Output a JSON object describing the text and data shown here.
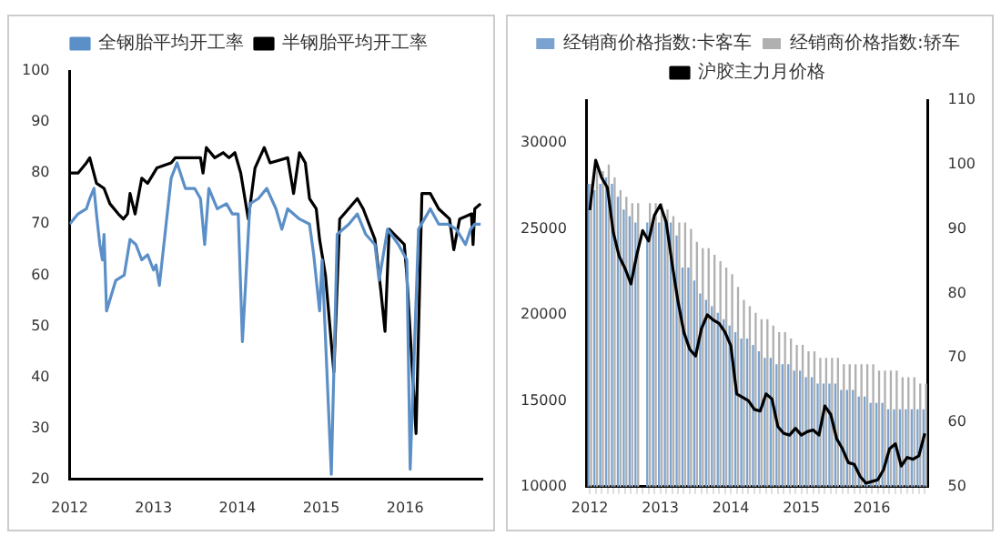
{
  "chart_data": [
    {
      "type": "line",
      "xlim": [
        2012,
        2016.92
      ],
      "xticks": [
        2012,
        2013,
        2014,
        2015,
        2016
      ],
      "ylim": [
        20,
        100
      ],
      "yticks": [
        20,
        30,
        40,
        50,
        60,
        70,
        80,
        90,
        100
      ],
      "grid": false,
      "legend": "top",
      "series": [
        {
          "name": "全钢胎平均开工率",
          "color": "#5b8fc7",
          "x": [
            2012.0,
            2012.1,
            2012.2,
            2012.24,
            2012.29,
            2012.32,
            2012.36,
            2012.39,
            2012.41,
            2012.44,
            2012.55,
            2012.65,
            2012.72,
            2012.79,
            2012.86,
            2012.93,
            2013.0,
            2013.03,
            2013.07,
            2013.21,
            2013.28,
            2013.38,
            2013.49,
            2013.56,
            2013.61,
            2013.66,
            2013.76,
            2013.87,
            2013.94,
            2014.01,
            2014.06,
            2014.15,
            2014.25,
            2014.35,
            2014.46,
            2014.53,
            2014.6,
            2014.74,
            2014.86,
            2014.91,
            2014.98,
            2015.01,
            2015.12,
            2015.19,
            2015.33,
            2015.43,
            2015.53,
            2015.64,
            2015.69,
            2015.79,
            2015.92,
            2016.02,
            2016.06,
            2016.16,
            2016.3,
            2016.4,
            2016.51,
            2016.61,
            2016.72,
            2016.78,
            2016.83,
            2016.9
          ],
          "values": [
            70,
            72,
            73,
            75,
            77,
            72,
            66,
            63,
            68,
            53,
            59,
            60,
            67,
            66,
            63,
            64,
            61,
            62,
            58,
            79,
            82,
            77,
            77,
            75,
            66,
            77,
            73,
            74,
            72,
            72,
            47,
            74,
            75,
            77,
            73,
            69,
            73,
            71,
            70,
            64,
            53,
            63,
            21,
            68,
            70,
            72,
            68,
            66,
            59,
            69,
            66,
            63,
            22,
            69,
            73,
            70,
            70,
            69,
            66,
            69,
            70,
            70
          ]
        },
        {
          "name": "半钢胎平均开工率",
          "color": "#000000",
          "x": [
            2012.0,
            2012.1,
            2012.2,
            2012.24,
            2012.32,
            2012.41,
            2012.48,
            2012.58,
            2012.64,
            2012.69,
            2012.72,
            2012.78,
            2012.86,
            2012.93,
            2013.04,
            2013.21,
            2013.26,
            2013.56,
            2013.59,
            2013.63,
            2013.73,
            2013.83,
            2013.9,
            2013.97,
            2014.04,
            2014.13,
            2014.21,
            2014.32,
            2014.39,
            2014.6,
            2014.67,
            2014.74,
            2014.81,
            2014.86,
            2014.94,
            2014.98,
            2015.05,
            2015.15,
            2015.22,
            2015.43,
            2015.5,
            2015.64,
            2015.71,
            2015.76,
            2015.81,
            2015.99,
            2016.02,
            2016.13,
            2016.2,
            2016.3,
            2016.4,
            2016.53,
            2016.58,
            2016.65,
            2016.79,
            2016.81,
            2016.83,
            2016.9
          ],
          "values": [
            80,
            80,
            82,
            83,
            78,
            77,
            74,
            72,
            71,
            72,
            76,
            72,
            79,
            78,
            81,
            82,
            83,
            83,
            80,
            85,
            83,
            84,
            83,
            84,
            80,
            71,
            81,
            85,
            82,
            83,
            76,
            84,
            82,
            75,
            73,
            67,
            60,
            41,
            71,
            75,
            73,
            67,
            57,
            49,
            69,
            66,
            60,
            29,
            76,
            76,
            73,
            71,
            65,
            71,
            72,
            66,
            73,
            74
          ]
        }
      ]
    },
    {
      "type": "bar",
      "categories": [
        "2012",
        null,
        null,
        null,
        null,
        null,
        null,
        null,
        null,
        null,
        null,
        null,
        "2013",
        null,
        null,
        null,
        null,
        null,
        null,
        null,
        null,
        null,
        null,
        null,
        "2014",
        null,
        null,
        null,
        null,
        null,
        null,
        null,
        null,
        null,
        null,
        null,
        "2015",
        null,
        null,
        null,
        null,
        null,
        null,
        null,
        null,
        null,
        null,
        null,
        "2016",
        null,
        null,
        null,
        null,
        null,
        null,
        null,
        null,
        null
      ],
      "ylim": [
        10000,
        32500
      ],
      "yticks": [
        10000,
        15000,
        20000,
        25000,
        30000
      ],
      "y2lim": [
        50,
        110
      ],
      "y2ticks": [
        50,
        60,
        70,
        80,
        90,
        100,
        110
      ],
      "grid": false,
      "legend": "top",
      "series": [
        {
          "name": "经销商价格指数:卡客车",
          "color": "#7ba3cf",
          "axis": "y2",
          "values": [
            97,
            96,
            97,
            98,
            97,
            95,
            93,
            92,
            91,
            null,
            91,
            91,
            91,
            92,
            91,
            89,
            84,
            84,
            82,
            80,
            79,
            78,
            77,
            76,
            75,
            74,
            73,
            73,
            72,
            71,
            70,
            70,
            69,
            69,
            69,
            68,
            68,
            67,
            67,
            66,
            66,
            66,
            66,
            65,
            65,
            65,
            64,
            64,
            63,
            63,
            63,
            62,
            62,
            62,
            62,
            62,
            62,
            62
          ]
        },
        {
          "name": "经销商价格指数:轿车",
          "color": "#b0b0b0",
          "axis": "y2",
          "values": [
            97,
            100,
            99,
            100,
            98,
            96,
            95,
            94,
            94,
            null,
            94,
            94,
            94,
            93,
            92,
            91,
            91,
            90,
            88,
            87,
            87,
            86,
            85,
            84,
            83,
            81,
            79,
            78,
            77,
            76,
            76,
            75,
            74,
            74,
            73,
            72,
            72,
            71,
            71,
            70,
            70,
            70,
            70,
            69,
            69,
            69,
            69,
            69,
            69,
            68,
            68,
            68,
            68,
            67,
            67,
            67,
            66,
            66
          ]
        },
        {
          "name": "沪胶主力月价格",
          "color": "#000000",
          "type": "line",
          "axis": "y",
          "values": [
            26100,
            29000,
            28000,
            27400,
            24800,
            23400,
            22700,
            21800,
            23500,
            24900,
            24300,
            25800,
            26400,
            25400,
            23000,
            20800,
            19000,
            18000,
            17600,
            19200,
            20000,
            19700,
            19500,
            19000,
            18200,
            15400,
            15200,
            15000,
            14500,
            14400,
            15400,
            15100,
            13500,
            13100,
            13000,
            13400,
            13000,
            13200,
            13300,
            13000,
            14700,
            14200,
            12800,
            12200,
            11400,
            11300,
            10600,
            10200,
            10300,
            10400,
            11000,
            12200,
            12500,
            11200,
            11700,
            11600,
            11800,
            13100
          ]
        }
      ]
    }
  ]
}
